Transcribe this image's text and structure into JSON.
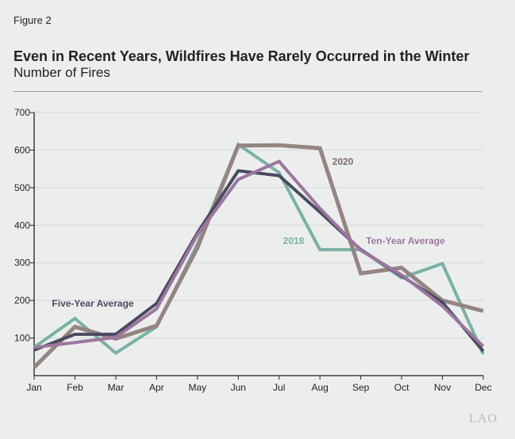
{
  "header": {
    "figure": "Figure 2",
    "title": "Even in Recent Years, Wildfires Have Rarely Occurred in the Winter",
    "subtitle": "Number of Fires"
  },
  "logo": "LAO",
  "chart_data": {
    "type": "line",
    "title": "Even in Recent Years, Wildfires Have Rarely Occurred in the Winter",
    "ylabel": "Number of Fires",
    "categories": [
      "Jan",
      "Feb",
      "Mar",
      "Apr",
      "May",
      "Jun",
      "Jul",
      "Aug",
      "Sep",
      "Oct",
      "Nov",
      "Dec"
    ],
    "ylim": [
      0,
      700
    ],
    "yticks": [
      100,
      200,
      300,
      400,
      500,
      600,
      700
    ],
    "grid": true,
    "series": [
      {
        "name": "2018",
        "color": "#79b1a6",
        "values": [
          75,
          152,
          60,
          130,
          350,
          615,
          540,
          335,
          335,
          260,
          298,
          57
        ]
      },
      {
        "name": "2020",
        "color": "#948580",
        "values": [
          22,
          130,
          98,
          133,
          340,
          612,
          613,
          605,
          272,
          287,
          200,
          172
        ]
      },
      {
        "name": "Five-Year Average",
        "color": "#4a4a60",
        "values": [
          68,
          110,
          110,
          192,
          380,
          545,
          532,
          435,
          335,
          265,
          195,
          65
        ]
      },
      {
        "name": "Ten-Year Average",
        "color": "#9c76a0",
        "values": [
          75,
          88,
          102,
          178,
          375,
          522,
          570,
          445,
          333,
          268,
          185,
          78
        ]
      }
    ]
  }
}
